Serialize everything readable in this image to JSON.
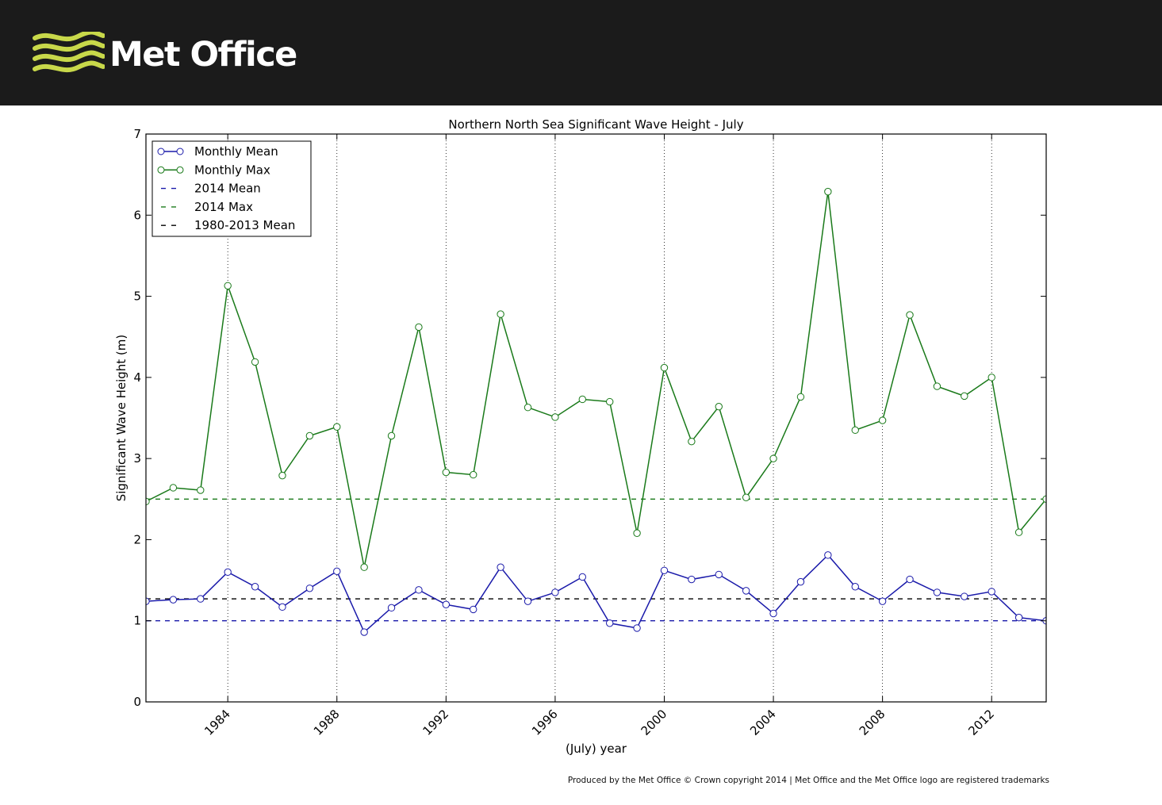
{
  "header": {
    "logo_text": "Met Office"
  },
  "footer": {
    "credit": "Produced by the Met Office © Crown copyright 2014 | Met Office and the Met Office logo are registered trademarks"
  },
  "colors": {
    "mean": "#1a1aaa",
    "max": "#1a7a1a",
    "climatology": "#000000",
    "header_bg": "#1b1b1b",
    "logo_accent": "#c8d84a"
  },
  "chart_data": {
    "type": "line",
    "title": "Northern North Sea Significant Wave Height - July",
    "xlabel": "(July) year",
    "ylabel": "Significant Wave Height (m)",
    "xlim": [
      1981,
      2014
    ],
    "ylim": [
      0,
      7
    ],
    "xticks": [
      1984,
      1988,
      1992,
      1996,
      2000,
      2004,
      2008,
      2012
    ],
    "yticks": [
      0,
      1,
      2,
      3,
      4,
      5,
      6,
      7
    ],
    "grid": "vertical dotted at x ticks",
    "legend_position": "top-left",
    "x": [
      1981,
      1982,
      1983,
      1984,
      1985,
      1986,
      1987,
      1988,
      1989,
      1990,
      1991,
      1992,
      1993,
      1994,
      1995,
      1996,
      1997,
      1998,
      1999,
      2000,
      2001,
      2002,
      2003,
      2004,
      2005,
      2006,
      2007,
      2008,
      2009,
      2010,
      2011,
      2012,
      2013,
      2014
    ],
    "series": [
      {
        "name": "Monthly Mean",
        "style": "solid-markers",
        "values": [
          1.24,
          1.26,
          1.27,
          1.6,
          1.42,
          1.17,
          1.4,
          1.61,
          0.86,
          1.16,
          1.38,
          1.2,
          1.14,
          1.66,
          1.24,
          1.35,
          1.54,
          0.97,
          0.91,
          1.62,
          1.51,
          1.57,
          1.37,
          1.09,
          1.48,
          1.81,
          1.42,
          1.24,
          1.51,
          1.35,
          1.3,
          1.36,
          1.04,
          1.0
        ]
      },
      {
        "name": "Monthly Max",
        "style": "solid-markers",
        "values": [
          2.47,
          2.64,
          2.61,
          5.13,
          4.19,
          2.79,
          3.28,
          3.39,
          1.66,
          3.28,
          4.62,
          2.83,
          2.8,
          4.78,
          3.63,
          3.51,
          3.73,
          3.7,
          2.08,
          4.12,
          3.21,
          3.64,
          2.52,
          3.0,
          3.76,
          6.29,
          3.35,
          3.47,
          4.77,
          3.89,
          3.77,
          4.0,
          2.09,
          2.5
        ]
      },
      {
        "name": "2014 Mean",
        "style": "dashed",
        "value": 1.0
      },
      {
        "name": "2014 Max",
        "style": "dashed",
        "value": 2.5
      },
      {
        "name": "1980-2013 Mean",
        "style": "dashed",
        "value": 1.27
      }
    ]
  }
}
